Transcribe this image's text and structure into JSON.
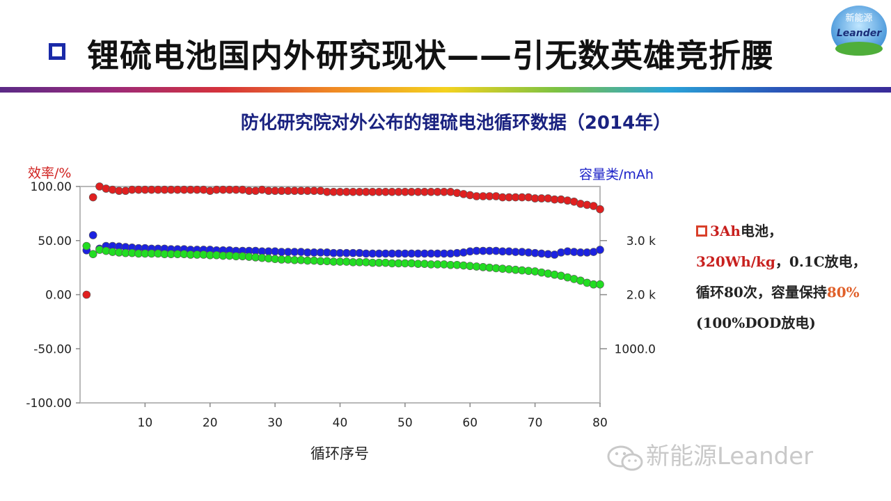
{
  "header": {
    "title": "锂硫电池国内外研究现状——引无数英雄竞折腰",
    "logo_text_cn": "新能源",
    "logo_text_en": "Leander"
  },
  "subtitle": "防化研究院对外公布的锂硫电池循环数据（2014年）",
  "side_note": {
    "part1_red": "3Ah",
    "part2": "电池，",
    "part3_red": "320Wh/kg",
    "part4": "，0.1C放电，循环80次，容量保持",
    "part5_orange": "80%",
    "part6": " (100%DOD放电)"
  },
  "watermark": "新能源Leander",
  "colors": {
    "efficiency": "#e02020",
    "charge": "#1c22e0",
    "discharge": "#22dd22",
    "left_axis_label": "#d0201e",
    "right_axis_label": "#1c22c8"
  },
  "chart_data": {
    "type": "scatter",
    "xlabel": "循环序号",
    "ylabel_left": "效率/%",
    "ylabel_right": "容量类/mAh",
    "xlim": [
      0,
      80
    ],
    "ylim_left": [
      -100,
      100
    ],
    "ylim_right": [
      0,
      4000
    ],
    "x_ticks": [
      10,
      20,
      30,
      40,
      50,
      60,
      70,
      80
    ],
    "y_ticks_left": [
      "100.00",
      "50.00",
      "0.00",
      "-50.00",
      "-100.00"
    ],
    "y_ticks_left_values": [
      100,
      50,
      0,
      -50,
      -100
    ],
    "y_ticks_right": [
      "3.0 k",
      "2.0 k",
      "1000.0"
    ],
    "y_ticks_right_values": [
      3000,
      2000,
      1000
    ],
    "grid": false,
    "series": [
      {
        "axis": "left",
        "color": "#e02020",
        "x": [
          1,
          2,
          3,
          4,
          5,
          6,
          7,
          8,
          9,
          10,
          11,
          12,
          13,
          14,
          15,
          16,
          17,
          18,
          19,
          20,
          21,
          22,
          23,
          24,
          25,
          26,
          27,
          28,
          29,
          30,
          31,
          32,
          33,
          34,
          35,
          36,
          37,
          38,
          39,
          40,
          41,
          42,
          43,
          44,
          45,
          46,
          47,
          48,
          49,
          50,
          51,
          52,
          53,
          54,
          55,
          56,
          57,
          58,
          59,
          60,
          61,
          62,
          63,
          64,
          65,
          66,
          67,
          68,
          69,
          70,
          71,
          72,
          73,
          74,
          75,
          76,
          77,
          78,
          79,
          80
        ],
        "values": [
          0,
          90,
          100,
          98,
          97,
          96,
          96,
          97,
          97,
          97,
          97,
          97,
          97,
          97,
          97,
          97,
          97,
          97,
          97,
          96,
          97,
          97,
          97,
          97,
          97,
          96,
          96,
          97,
          96,
          96,
          96,
          96,
          96,
          96,
          96,
          96,
          96,
          95,
          95,
          95,
          95,
          95,
          95,
          95,
          95,
          95,
          95,
          95,
          95,
          95,
          95,
          95,
          95,
          95,
          95,
          95,
          95,
          94,
          93,
          92,
          91,
          91,
          91,
          91,
          90,
          90,
          90,
          90,
          90,
          89,
          89,
          89,
          88,
          88,
          87,
          86,
          84,
          83,
          82,
          79
        ]
      },
      {
        "axis": "right",
        "color": "#1c22e0",
        "x": [
          1,
          2,
          3,
          4,
          5,
          6,
          7,
          8,
          9,
          10,
          11,
          12,
          13,
          14,
          15,
          16,
          17,
          18,
          19,
          20,
          21,
          22,
          23,
          24,
          25,
          26,
          27,
          28,
          29,
          30,
          31,
          32,
          33,
          34,
          35,
          36,
          37,
          38,
          39,
          40,
          41,
          42,
          43,
          44,
          45,
          46,
          47,
          48,
          49,
          50,
          51,
          52,
          53,
          54,
          55,
          56,
          57,
          58,
          59,
          60,
          61,
          62,
          63,
          64,
          65,
          66,
          67,
          68,
          69,
          70,
          71,
          72,
          73,
          74,
          75,
          76,
          77,
          78,
          79,
          80
        ],
        "values": [
          2820,
          3100,
          2850,
          2900,
          2900,
          2890,
          2880,
          2870,
          2860,
          2860,
          2850,
          2850,
          2850,
          2840,
          2840,
          2840,
          2830,
          2830,
          2830,
          2830,
          2820,
          2820,
          2820,
          2810,
          2810,
          2810,
          2810,
          2800,
          2800,
          2800,
          2790,
          2790,
          2790,
          2790,
          2780,
          2780,
          2780,
          2780,
          2770,
          2770,
          2770,
          2770,
          2770,
          2760,
          2760,
          2760,
          2760,
          2760,
          2760,
          2760,
          2760,
          2760,
          2760,
          2760,
          2760,
          2760,
          2760,
          2770,
          2780,
          2800,
          2810,
          2810,
          2810,
          2810,
          2800,
          2800,
          2790,
          2790,
          2780,
          2770,
          2760,
          2750,
          2740,
          2780,
          2800,
          2790,
          2780,
          2780,
          2790,
          2830
        ]
      },
      {
        "axis": "right",
        "color": "#22dd22",
        "x": [
          1,
          2,
          3,
          4,
          5,
          6,
          7,
          8,
          9,
          10,
          11,
          12,
          13,
          14,
          15,
          16,
          17,
          18,
          19,
          20,
          21,
          22,
          23,
          24,
          25,
          26,
          27,
          28,
          29,
          30,
          31,
          32,
          33,
          34,
          35,
          36,
          37,
          38,
          39,
          40,
          41,
          42,
          43,
          44,
          45,
          46,
          47,
          48,
          49,
          50,
          51,
          52,
          53,
          54,
          55,
          56,
          57,
          58,
          59,
          60,
          61,
          62,
          63,
          64,
          65,
          66,
          67,
          68,
          69,
          70,
          71,
          72,
          73,
          74,
          75,
          76,
          77,
          78,
          79,
          80
        ],
        "values": [
          2900,
          2750,
          2830,
          2810,
          2790,
          2780,
          2770,
          2770,
          2760,
          2760,
          2760,
          2760,
          2750,
          2750,
          2750,
          2750,
          2740,
          2740,
          2740,
          2730,
          2730,
          2720,
          2720,
          2710,
          2710,
          2700,
          2690,
          2680,
          2670,
          2660,
          2650,
          2650,
          2640,
          2640,
          2630,
          2630,
          2620,
          2620,
          2610,
          2610,
          2610,
          2600,
          2600,
          2600,
          2590,
          2590,
          2590,
          2580,
          2580,
          2580,
          2580,
          2570,
          2570,
          2560,
          2560,
          2560,
          2550,
          2550,
          2540,
          2530,
          2520,
          2510,
          2500,
          2490,
          2480,
          2470,
          2460,
          2450,
          2440,
          2430,
          2410,
          2390,
          2370,
          2350,
          2320,
          2290,
          2260,
          2220,
          2190,
          2190
        ]
      }
    ]
  }
}
